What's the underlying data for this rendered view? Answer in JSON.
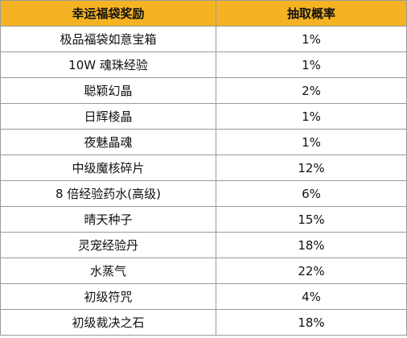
{
  "table": {
    "headers": [
      "幸运福袋奖励",
      "抽取概率"
    ],
    "rows": [
      {
        "reward": "极品福袋如意宝箱",
        "rate": "1%"
      },
      {
        "reward": "10W 魂珠经验",
        "rate": "1%"
      },
      {
        "reward": "聪颖幻晶",
        "rate": "2%"
      },
      {
        "reward": "日辉棱晶",
        "rate": "1%"
      },
      {
        "reward": "夜魅晶魂",
        "rate": "1%"
      },
      {
        "reward": "中级魔核碎片",
        "rate": "12%"
      },
      {
        "reward": "8 倍经验药水(高级)",
        "rate": "6%"
      },
      {
        "reward": "晴天种子",
        "rate": "15%"
      },
      {
        "reward": "灵宠经验丹",
        "rate": "18%"
      },
      {
        "reward": "水蒸气",
        "rate": "22%"
      },
      {
        "reward": "初级符咒",
        "rate": "4%"
      },
      {
        "reward": "初级裁决之石",
        "rate": "18%"
      }
    ]
  },
  "colors": {
    "header_background": "#f5b323",
    "border": "#9a9a9a",
    "text": "#111111"
  }
}
